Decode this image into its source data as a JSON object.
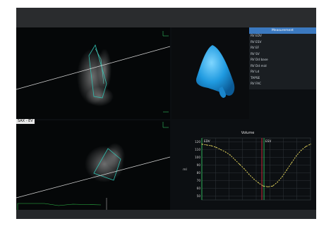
{
  "tags": {
    "top": "",
    "bottom": "SAX - EV"
  },
  "measurements": {
    "title": "Measurement",
    "rows": [
      {
        "label": "RV EDV",
        "value": ""
      },
      {
        "label": "RV ESV",
        "value": ""
      },
      {
        "label": "RV EF",
        "value": ""
      },
      {
        "label": "RV SV",
        "value": ""
      },
      {
        "label": "RV Dd base",
        "value": ""
      },
      {
        "label": "RV Dd mid",
        "value": ""
      },
      {
        "label": "RV Ld",
        "value": ""
      },
      {
        "label": "TAPSE",
        "value": ""
      },
      {
        "label": "RV FAC",
        "value": ""
      }
    ]
  },
  "chart_data": {
    "type": "line",
    "title": "Volume",
    "xlabel": "",
    "ylabel": "ml",
    "ytick_labels": [
      "120",
      "110",
      "100",
      "90",
      "80",
      "70",
      "60",
      "50"
    ],
    "ylim": [
      45,
      125
    ],
    "x": [
      0,
      1,
      2,
      3,
      4,
      5,
      6,
      7,
      8,
      9,
      10,
      11,
      12,
      13,
      14,
      15,
      16,
      17,
      18,
      19,
      20,
      21,
      22,
      23
    ],
    "series": [
      {
        "name": "",
        "values": [
          117,
          116,
          115,
          113,
          110,
          107,
          103,
          97,
          91,
          85,
          78,
          72,
          67,
          63,
          62,
          63,
          68,
          75,
          84,
          93,
          102,
          109,
          114,
          117
        ]
      }
    ],
    "markers": [
      {
        "label": "EDV",
        "x": 0
      },
      {
        "label": "ESV",
        "x": 13
      }
    ],
    "grid": true,
    "colors": {
      "line": "#f0e060",
      "edv": "#30c060",
      "esv_red": "#e03040",
      "esv_green": "#30c060"
    }
  }
}
